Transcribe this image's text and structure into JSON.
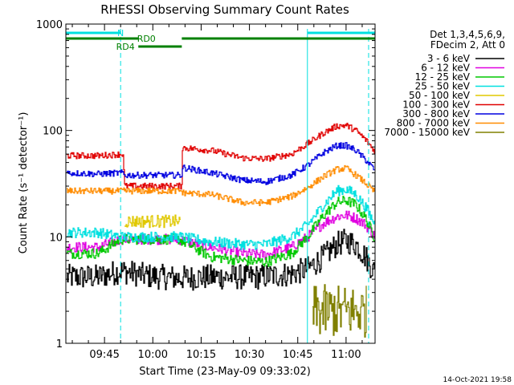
{
  "chart_data": {
    "type": "line",
    "title": "RHESSI Observing Summary Count Rates",
    "xlabel": "Start Time (23-May-09 09:33:02)",
    "ylabel": "Count Rate (s⁻¹ detector⁻¹)",
    "yscale": "log",
    "ylim": [
      1,
      1000
    ],
    "xlim_minutes": [
      0,
      96
    ],
    "x_ticks": [
      {
        "m": 12,
        "label": "09:45"
      },
      {
        "m": 27,
        "label": "10:00"
      },
      {
        "m": 42,
        "label": "10:15"
      },
      {
        "m": 57,
        "label": "10:30"
      },
      {
        "m": 72,
        "label": "10:45"
      },
      {
        "m": 87,
        "label": "11:00"
      }
    ],
    "y_ticks": [
      {
        "v": 1,
        "label": "1"
      },
      {
        "v": 10,
        "label": "10"
      },
      {
        "v": 100,
        "label": "100"
      },
      {
        "v": 1000,
        "label": "1000"
      }
    ],
    "legend_header": [
      "Det 1,3,4,5,6,9,",
      "FDecim 2, Att 0"
    ],
    "series": [
      {
        "name": "3 - 6 keV",
        "color": "#000000",
        "x": [
          0,
          10,
          17,
          25,
          35,
          45,
          60,
          70,
          75,
          80,
          84,
          87,
          90,
          93,
          96
        ],
        "y": [
          4.2,
          4.2,
          4.8,
          4.3,
          4.1,
          4.2,
          4.2,
          4.5,
          5.0,
          6.5,
          8.5,
          9.2,
          8.5,
          6.5,
          4.5
        ],
        "noise": 0.12
      },
      {
        "name": "6 - 12 keV",
        "color": "#e000e0",
        "x": [
          0,
          10,
          17,
          25,
          35,
          45,
          55,
          62,
          70,
          75,
          80,
          84,
          87,
          90,
          93,
          96
        ],
        "y": [
          8,
          8,
          9.5,
          9.5,
          9.5,
          8,
          7,
          6.8,
          8,
          10,
          13.5,
          15.5,
          16,
          15,
          13,
          10
        ],
        "noise": 0.05
      },
      {
        "name": "12 - 25 keV",
        "color": "#00c800",
        "x": [
          0,
          10,
          17,
          25,
          35,
          45,
          55,
          62,
          70,
          75,
          80,
          84,
          87,
          90,
          93,
          96
        ],
        "y": [
          7,
          7,
          9.5,
          9.5,
          9.5,
          6.5,
          6,
          5.8,
          7,
          10,
          16,
          21,
          22,
          20,
          15,
          9.5
        ],
        "noise": 0.05
      },
      {
        "name": "25 - 50 keV",
        "color": "#00e0e0",
        "x": [
          0,
          10,
          17,
          25,
          35,
          45,
          55,
          62,
          70,
          75,
          80,
          84,
          87,
          90,
          93,
          96
        ],
        "y": [
          11,
          11,
          10,
          10,
          10,
          9,
          8.5,
          8.5,
          10,
          13,
          20,
          27,
          28,
          25,
          19,
          13
        ],
        "noise": 0.05
      },
      {
        "name": "50 - 100 keV",
        "color": "#e0c800",
        "x": [
          0,
          17.9,
          18,
          35.9,
          36,
          96
        ],
        "y": [
          null,
          null,
          14,
          14,
          null,
          null
        ],
        "noise": 0.06
      },
      {
        "name": "100 - 300 keV",
        "color": "#e00000",
        "x": [
          0,
          10,
          17.9,
          18,
          35.9,
          36,
          45,
          55,
          62,
          70,
          75,
          80,
          84,
          87,
          90,
          93,
          96
        ],
        "y": [
          58,
          58,
          60,
          30,
          30,
          69,
          65,
          55,
          54,
          60,
          75,
          95,
          110,
          112,
          100,
          82,
          63
        ],
        "noise": 0.03
      },
      {
        "name": "300 - 800 keV",
        "color": "#0000e0",
        "x": [
          0,
          10,
          17.9,
          18,
          35.9,
          36,
          45,
          55,
          62,
          70,
          75,
          80,
          84,
          87,
          90,
          93,
          96
        ],
        "y": [
          40,
          39,
          40,
          38,
          38,
          45,
          40,
          34,
          33,
          38,
          47,
          62,
          72,
          72,
          65,
          53,
          42
        ],
        "noise": 0.03
      },
      {
        "name": "800 - 7000 keV",
        "color": "#ff8c00",
        "x": [
          0,
          10,
          17.9,
          18,
          35.9,
          36,
          45,
          55,
          62,
          70,
          75,
          80,
          84,
          87,
          90,
          93,
          96
        ],
        "y": [
          27,
          27,
          27,
          27,
          27,
          26,
          25,
          21,
          21,
          24,
          29,
          37,
          43,
          44,
          38,
          32,
          26
        ],
        "noise": 0.03
      },
      {
        "name": "7000 - 15000 keV",
        "color": "#808000",
        "x": [
          0,
          76.4,
          76.5,
          93.5,
          93.6,
          96
        ],
        "y": [
          null,
          null,
          2,
          2,
          null,
          null
        ],
        "noise": 0.25
      }
    ],
    "flags": [
      {
        "name": "N",
        "color": "#00e0e0",
        "segments": [
          [
            0,
            17
          ],
          [
            75,
            96
          ]
        ],
        "label_at_minute": 17
      },
      {
        "name": "RD0",
        "color": "#008000",
        "segments": [
          [
            0,
            22.5
          ],
          [
            36,
            96
          ]
        ],
        "label_at_minute": 25
      },
      {
        "name": "RD4",
        "color": "#008000",
        "segments": [
          [
            22.5,
            36
          ]
        ],
        "label_at_minute": 18.5
      }
    ],
    "vlines": [
      {
        "m": 17,
        "style": "dashed"
      },
      {
        "m": 75,
        "style": "solid"
      },
      {
        "m": 94,
        "style": "dashed"
      }
    ]
  },
  "footer_date": "14-Oct-2021 19:58"
}
